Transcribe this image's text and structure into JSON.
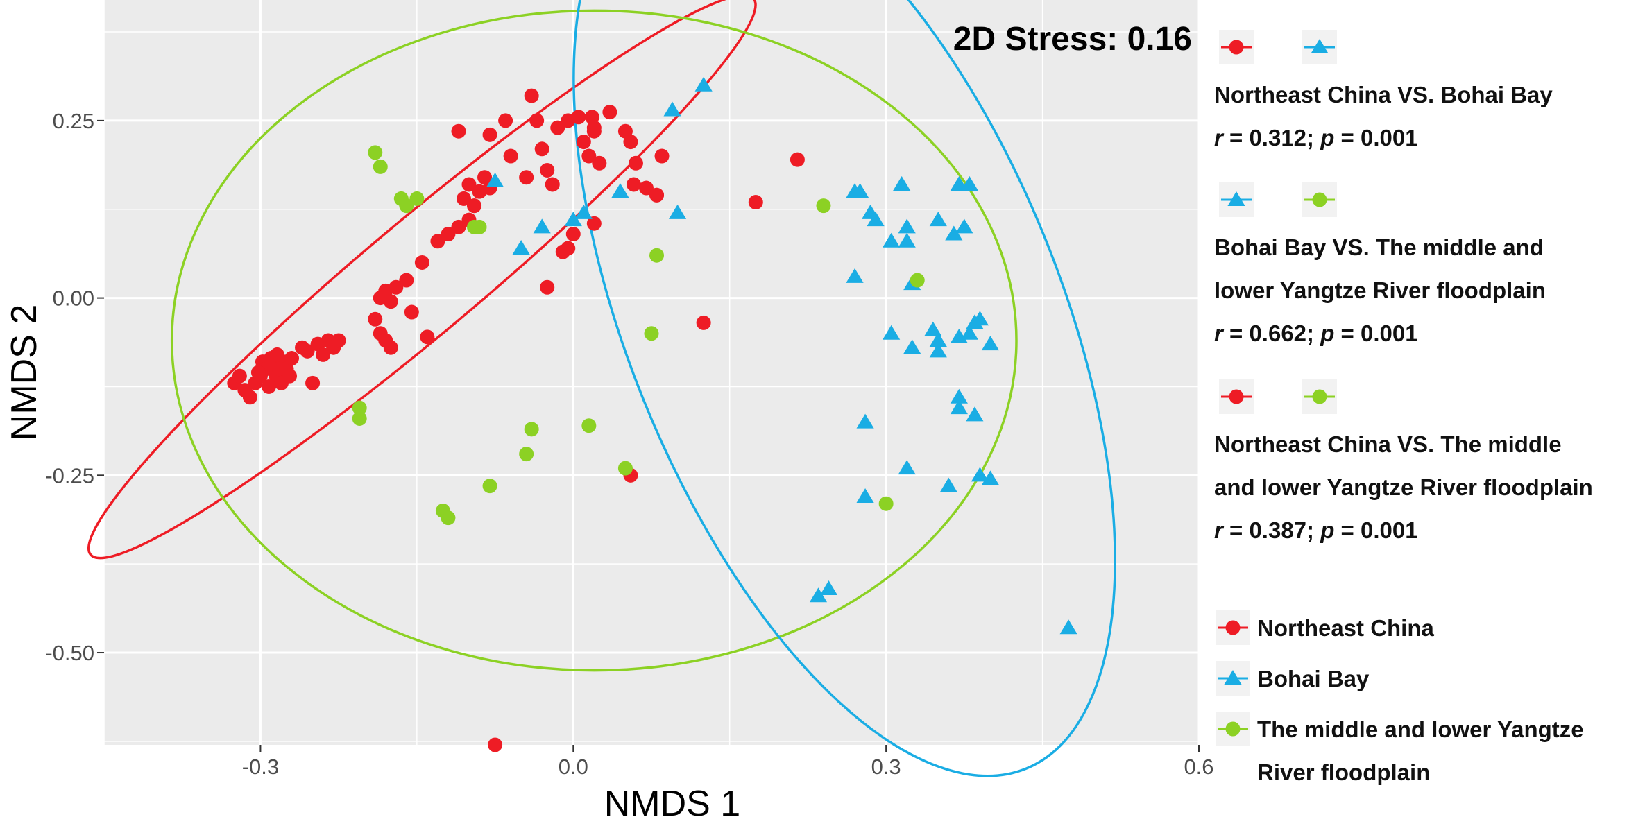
{
  "chart_data": {
    "type": "scatter",
    "title": "",
    "xlabel": "NMDS 1",
    "ylabel": "NMDS 2",
    "xlim": [
      -0.45,
      0.6
    ],
    "ylim": [
      -0.63,
      0.42
    ],
    "x_ticks": [
      -0.3,
      0.0,
      0.3,
      0.6
    ],
    "x_tick_labels": [
      "-0.3",
      "0.0",
      "0.3",
      "0.6"
    ],
    "y_ticks": [
      -0.5,
      -0.25,
      0.0,
      0.25
    ],
    "y_tick_labels": [
      "-0.50",
      "-0.25",
      "0.00",
      "0.25-"
    ],
    "grid": true,
    "annotation": "2D Stress: 0.16",
    "colors": {
      "northeast": "#ee1c25",
      "bohai": "#1aade4",
      "yangtze": "#8cd124",
      "panel_bg": "#ebebeb",
      "grid": "#ffffff"
    },
    "series": [
      {
        "key": "northeast",
        "marker": "circle",
        "points": [
          [
            -0.325,
            -0.12
          ],
          [
            -0.32,
            -0.11
          ],
          [
            -0.315,
            -0.13
          ],
          [
            -0.31,
            -0.14
          ],
          [
            -0.305,
            -0.12
          ],
          [
            -0.3,
            -0.11
          ],
          [
            -0.298,
            -0.09
          ],
          [
            -0.295,
            -0.1
          ],
          [
            -0.29,
            -0.085
          ],
          [
            -0.288,
            -0.095
          ],
          [
            -0.285,
            -0.11
          ],
          [
            -0.282,
            -0.1
          ],
          [
            -0.28,
            -0.12
          ],
          [
            -0.278,
            -0.09
          ],
          [
            -0.275,
            -0.1
          ],
          [
            -0.272,
            -0.11
          ],
          [
            -0.27,
            -0.085
          ],
          [
            -0.292,
            -0.125
          ],
          [
            -0.302,
            -0.105
          ],
          [
            -0.284,
            -0.08
          ],
          [
            -0.26,
            -0.07
          ],
          [
            -0.255,
            -0.075
          ],
          [
            -0.25,
            -0.12
          ],
          [
            -0.245,
            -0.065
          ],
          [
            -0.24,
            -0.08
          ],
          [
            -0.235,
            -0.06
          ],
          [
            -0.23,
            -0.07
          ],
          [
            -0.225,
            -0.06
          ],
          [
            -0.19,
            -0.03
          ],
          [
            -0.185,
            -0.05
          ],
          [
            -0.18,
            -0.06
          ],
          [
            -0.175,
            -0.07
          ],
          [
            -0.185,
            0.0
          ],
          [
            -0.18,
            0.01
          ],
          [
            -0.17,
            0.015
          ],
          [
            -0.175,
            -0.005
          ],
          [
            -0.16,
            0.025
          ],
          [
            -0.155,
            -0.02
          ],
          [
            -0.145,
            0.05
          ],
          [
            -0.14,
            -0.055
          ],
          [
            -0.13,
            0.08
          ],
          [
            -0.12,
            0.09
          ],
          [
            -0.11,
            0.1
          ],
          [
            -0.105,
            0.14
          ],
          [
            -0.1,
            0.16
          ],
          [
            -0.095,
            0.13
          ],
          [
            -0.09,
            0.15
          ],
          [
            -0.085,
            0.17
          ],
          [
            -0.08,
            0.155
          ],
          [
            -0.1,
            0.11
          ],
          [
            -0.11,
            0.235
          ],
          [
            -0.08,
            0.23
          ],
          [
            -0.065,
            0.25
          ],
          [
            -0.06,
            0.2
          ],
          [
            -0.045,
            0.17
          ],
          [
            -0.04,
            0.285
          ],
          [
            -0.035,
            0.25
          ],
          [
            -0.03,
            0.21
          ],
          [
            -0.025,
            0.18
          ],
          [
            -0.02,
            0.16
          ],
          [
            -0.015,
            0.24
          ],
          [
            -0.005,
            0.25
          ],
          [
            0.005,
            0.255
          ],
          [
            0.01,
            0.22
          ],
          [
            0.015,
            0.2
          ],
          [
            0.018,
            0.255
          ],
          [
            0.02,
            0.235
          ],
          [
            0.025,
            0.19
          ],
          [
            0.035,
            0.262
          ],
          [
            0.02,
            0.24
          ],
          [
            0.05,
            0.235
          ],
          [
            0.055,
            0.22
          ],
          [
            0.06,
            0.19
          ],
          [
            0.058,
            0.16
          ],
          [
            0.07,
            0.155
          ],
          [
            0.08,
            0.145
          ],
          [
            0.02,
            0.105
          ],
          [
            -0.005,
            0.07
          ],
          [
            -0.01,
            0.065
          ],
          [
            -0.025,
            0.015
          ],
          [
            0.0,
            0.09
          ],
          [
            0.085,
            0.2
          ],
          [
            0.08,
            0.145
          ],
          [
            0.215,
            0.195
          ],
          [
            0.175,
            0.135
          ],
          [
            0.125,
            -0.035
          ],
          [
            0.055,
            -0.25
          ],
          [
            -0.075,
            -0.63
          ],
          [
            -0.095,
            0.13
          ]
        ]
      },
      {
        "key": "bohai",
        "marker": "triangle",
        "points": [
          [
            0.125,
            0.3
          ],
          [
            0.095,
            0.265
          ],
          [
            0.1,
            0.12
          ],
          [
            0.045,
            0.15
          ],
          [
            0.01,
            0.12
          ],
          [
            0.0,
            0.11
          ],
          [
            -0.03,
            0.1
          ],
          [
            -0.05,
            0.07
          ],
          [
            -0.075,
            0.165
          ],
          [
            0.27,
            0.15
          ],
          [
            0.275,
            0.15
          ],
          [
            0.285,
            0.12
          ],
          [
            0.29,
            0.11
          ],
          [
            0.305,
            0.08
          ],
          [
            0.315,
            0.16
          ],
          [
            0.32,
            0.1
          ],
          [
            0.32,
            0.08
          ],
          [
            0.35,
            0.11
          ],
          [
            0.37,
            0.16
          ],
          [
            0.38,
            0.16
          ],
          [
            0.375,
            0.1
          ],
          [
            0.365,
            0.09
          ],
          [
            0.325,
            0.02
          ],
          [
            0.27,
            0.03
          ],
          [
            0.305,
            -0.05
          ],
          [
            0.325,
            -0.07
          ],
          [
            0.345,
            -0.045
          ],
          [
            0.35,
            -0.06
          ],
          [
            0.35,
            -0.075
          ],
          [
            0.37,
            -0.055
          ],
          [
            0.38,
            -0.05
          ],
          [
            0.385,
            -0.035
          ],
          [
            0.39,
            -0.03
          ],
          [
            0.4,
            -0.065
          ],
          [
            0.37,
            -0.14
          ],
          [
            0.37,
            -0.155
          ],
          [
            0.385,
            -0.165
          ],
          [
            0.28,
            -0.175
          ],
          [
            0.32,
            -0.24
          ],
          [
            0.36,
            -0.265
          ],
          [
            0.39,
            -0.25
          ],
          [
            0.4,
            -0.255
          ],
          [
            0.28,
            -0.28
          ],
          [
            0.235,
            -0.42
          ],
          [
            0.245,
            -0.41
          ],
          [
            0.475,
            -0.465
          ]
        ]
      },
      {
        "key": "yangtze",
        "marker": "circle",
        "points": [
          [
            -0.19,
            0.205
          ],
          [
            -0.185,
            0.185
          ],
          [
            -0.165,
            0.14
          ],
          [
            -0.16,
            0.13
          ],
          [
            -0.15,
            0.14
          ],
          [
            -0.095,
            0.1
          ],
          [
            -0.09,
            0.1
          ],
          [
            0.08,
            0.06
          ],
          [
            0.24,
            0.13
          ],
          [
            0.33,
            0.025
          ],
          [
            0.075,
            -0.05
          ],
          [
            -0.205,
            -0.155
          ],
          [
            -0.205,
            -0.17
          ],
          [
            -0.04,
            -0.185
          ],
          [
            -0.045,
            -0.22
          ],
          [
            0.015,
            -0.18
          ],
          [
            0.05,
            -0.24
          ],
          [
            -0.08,
            -0.265
          ],
          [
            -0.125,
            -0.3
          ],
          [
            -0.12,
            -0.31
          ],
          [
            0.3,
            -0.29
          ]
        ]
      }
    ],
    "ellipses": [
      {
        "key": "northeast",
        "cx": -0.145,
        "cy": 0.03,
        "rx": 0.415,
        "ry": 0.08,
        "angle": 40
      },
      {
        "key": "yangtze",
        "cx": 0.02,
        "cy": -0.06,
        "rx": 0.405,
        "ry": 0.465,
        "angle": 0
      },
      {
        "key": "bohai",
        "cx": 0.26,
        "cy": -0.03,
        "rx": 0.465,
        "ry": 0.305,
        "angle": -68
      }
    ],
    "legend": {
      "position": "right",
      "comparisons": [
        {
          "symbol_a": "northeast",
          "symbol_b": "bohai",
          "lines": [
            "Northeast China VS. Bohai Bay"
          ],
          "r_label": "r",
          "r_value": " = 0.312; ",
          "p_label": "p",
          "p_value": " = 0.001"
        },
        {
          "symbol_a": "bohai",
          "symbol_b": "yangtze",
          "lines": [
            "Bohai Bay VS. The middle and",
            "lower Yangtze River floodplain"
          ],
          "r_label": "r",
          "r_value": " = 0.662; ",
          "p_label": "p",
          "p_value": " = 0.001"
        },
        {
          "symbol_a": "northeast",
          "symbol_b": "yangtze",
          "lines": [
            "Northeast China VS. The middle",
            "and lower Yangtze River floodplain"
          ],
          "r_label": "r",
          "r_value": " = 0.387; ",
          "p_label": "p",
          "p_value": " = 0.001"
        }
      ],
      "groups": [
        {
          "key": "northeast",
          "lines": [
            "Northeast China"
          ]
        },
        {
          "key": "bohai",
          "lines": [
            "Bohai Bay"
          ]
        },
        {
          "key": "yangtze",
          "lines": [
            "The middle and lower Yangtze",
            "River floodplain"
          ]
        }
      ]
    }
  }
}
